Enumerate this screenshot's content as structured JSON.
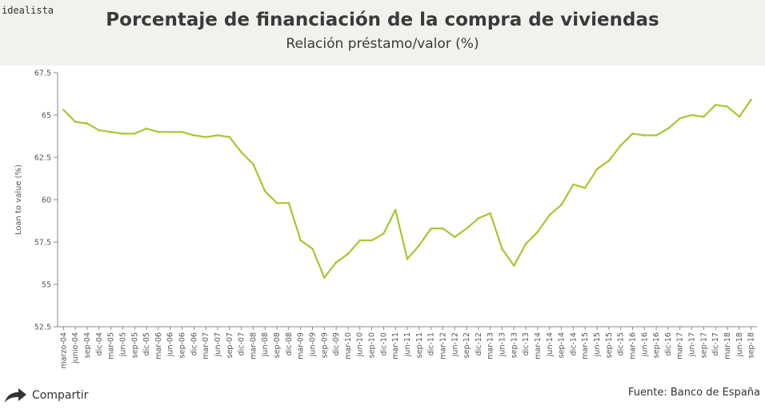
{
  "header": {
    "brand": "idealista",
    "title": "Porcentaje de financiación de la compra de viviendas",
    "subtitle": "Relación préstamo/valor (%)"
  },
  "footer": {
    "share_label": "Compartir",
    "source": "Fuente: Banco de España"
  },
  "colors": {
    "line": "#a5c830",
    "axis": "#888888",
    "header_bg": "#f1f1ee"
  },
  "icons": {
    "share": "share-arrow-icon"
  },
  "chart_data": {
    "type": "line",
    "title": "Porcentaje de financiación de la compra de viviendas",
    "subtitle": "Relación préstamo/valor (%)",
    "xlabel": "",
    "ylabel": "Loan to value (%)",
    "ylim": [
      52.5,
      67.5
    ],
    "yticks": [
      "52.5",
      "55",
      "57.5",
      "60",
      "62.5",
      "65",
      "67.5"
    ],
    "grid": false,
    "categories": [
      "marzo-04",
      "junio-04",
      "sep-04",
      "dic-04",
      "mar-05",
      "jun-05",
      "sep-05",
      "dic-05",
      "mar-06",
      "jun-06",
      "sep-06",
      "dic-06",
      "mar-07",
      "jun-07",
      "sep-07",
      "dic-07",
      "mar-08",
      "jun-08",
      "sep-08",
      "dic-08",
      "mar-09",
      "jun-09",
      "sep-09",
      "dic-09",
      "mar-10",
      "jun-10",
      "sep-10",
      "dic-10",
      "mar-11",
      "jun-11",
      "sep-11",
      "dic-11",
      "mar-12",
      "jun-12",
      "sep-12",
      "dic-12",
      "mar-13",
      "jun-13",
      "sep-13",
      "dic-13",
      "mar-14",
      "jun-14",
      "sep-14",
      "dic-14",
      "mar-15",
      "jun-15",
      "sep-15",
      "dic-15",
      "mar-16",
      "jun-16",
      "sep-16",
      "dic-16",
      "mar-17",
      "jun-17",
      "sep-17",
      "dic-17",
      "mar-18",
      "jun-18",
      "sep-18"
    ],
    "series": [
      {
        "values": [
          65.3,
          64.6,
          64.5,
          64.1,
          64.0,
          63.9,
          63.9,
          64.2,
          64.0,
          64.0,
          64.0,
          63.8,
          63.7,
          63.8,
          63.7,
          62.8,
          62.1,
          60.5,
          59.8,
          59.8,
          57.6,
          57.1,
          55.4,
          56.3,
          56.8,
          57.6,
          57.6,
          58.0,
          59.4,
          56.5,
          57.3,
          58.3,
          58.3,
          57.8,
          58.3,
          58.9,
          59.2,
          57.1,
          56.1,
          57.4,
          58.1,
          59.1,
          59.7,
          60.9,
          60.7,
          61.8,
          62.3,
          63.2,
          63.9,
          63.8,
          63.8,
          64.2,
          64.8,
          65.0,
          64.9,
          65.6,
          65.5,
          64.9,
          65.9
        ]
      }
    ]
  }
}
